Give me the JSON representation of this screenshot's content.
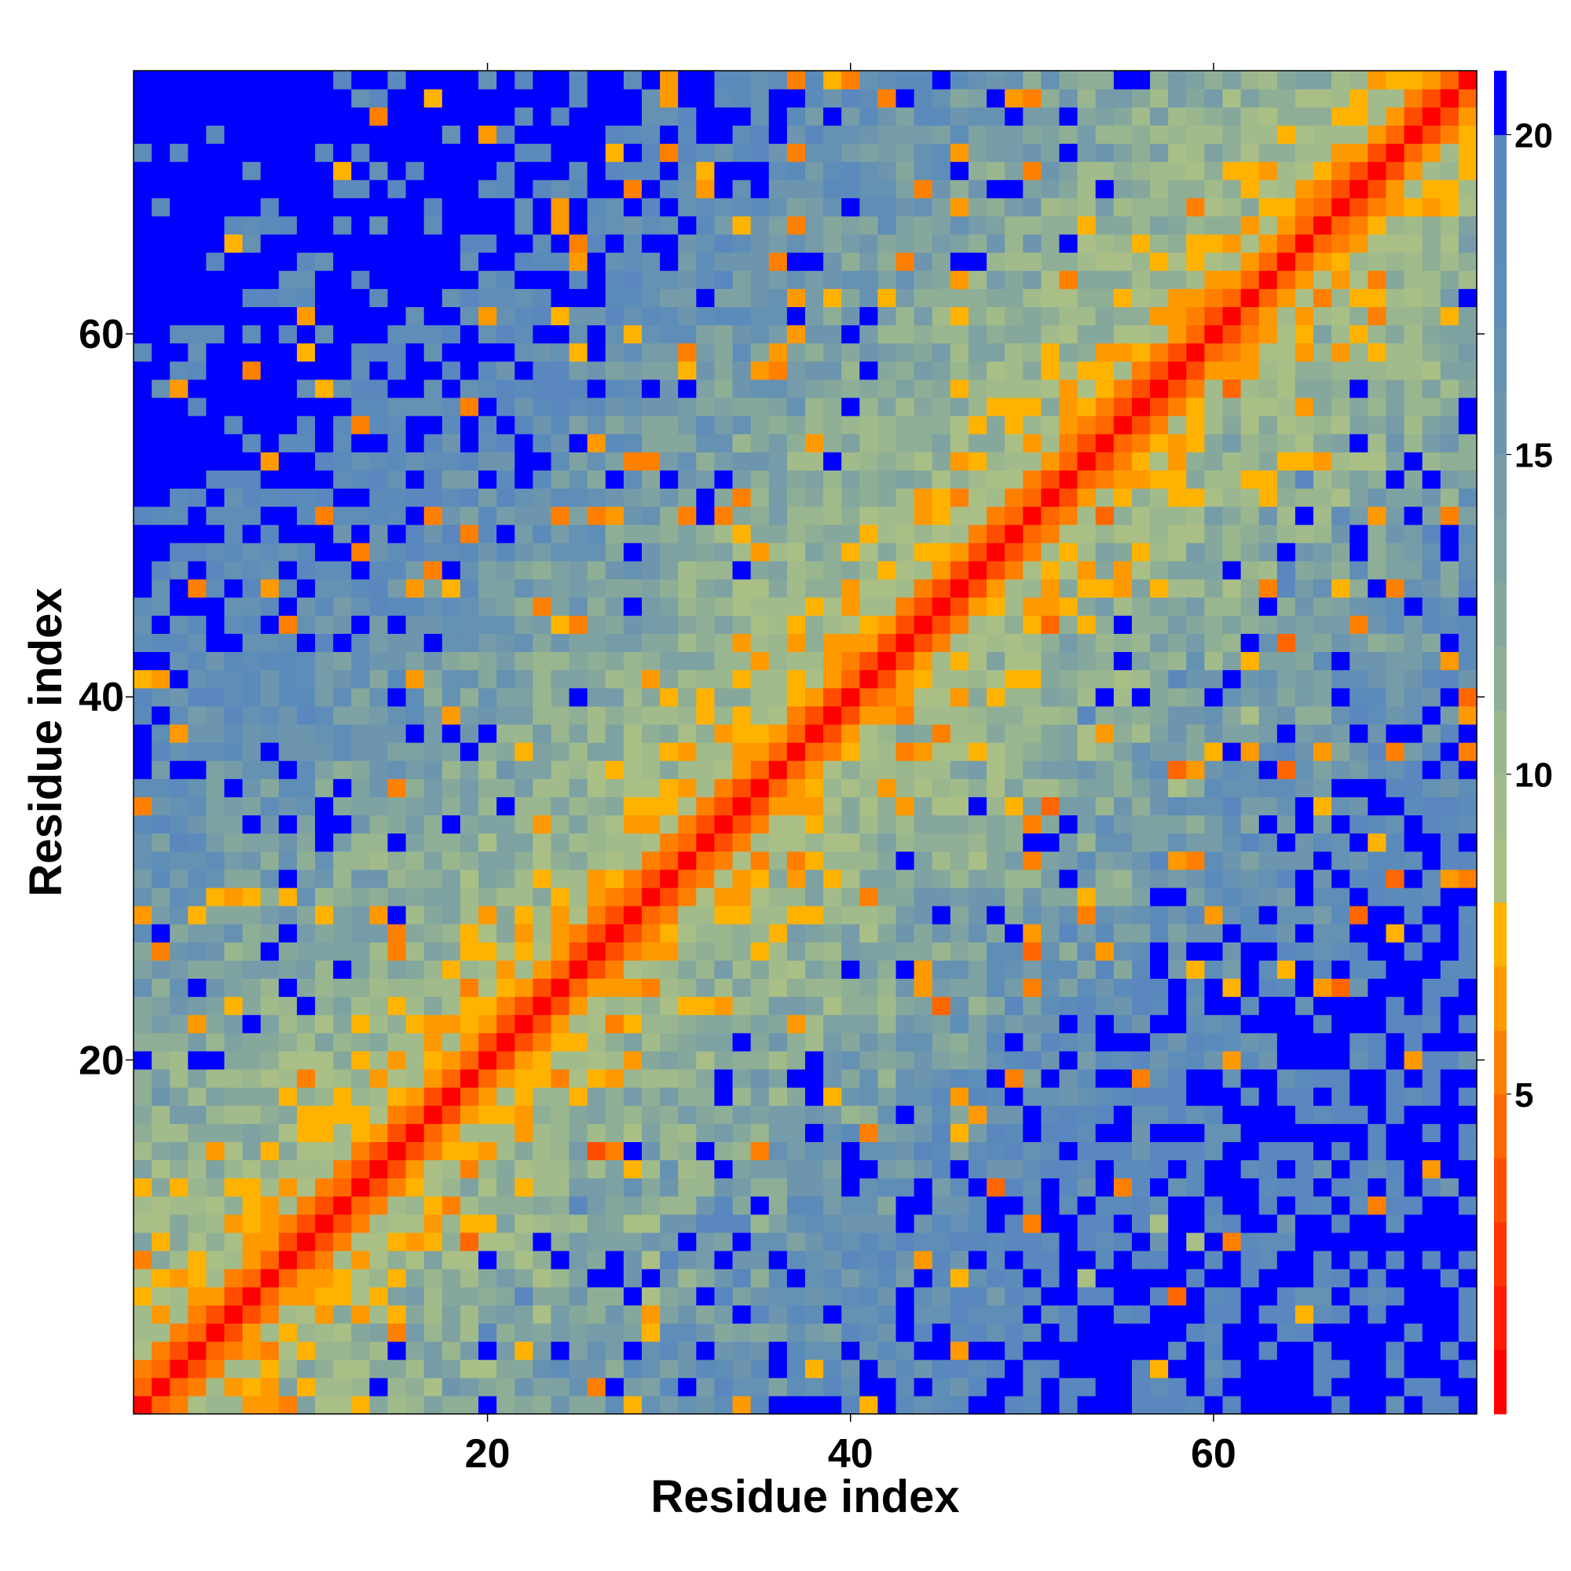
{
  "chart_data": {
    "type": "heatmap",
    "title": "",
    "xlabel": "Residue index",
    "ylabel": "Residue index",
    "n_residues": 74,
    "xlim": [
      1,
      74
    ],
    "ylim": [
      1,
      74
    ],
    "x_ticks": [
      20,
      40,
      60
    ],
    "y_ticks": [
      20,
      40,
      60
    ],
    "x_tick_labels": [
      "20",
      "40",
      "60"
    ],
    "y_tick_labels": [
      "20",
      "40",
      "60"
    ],
    "value_description": "pairwise residue distance (symmetric-style matrix, 0 on diagonal, capped at ~21)",
    "vmin": 0,
    "vmax": 21,
    "colorbar": {
      "ticks": [
        5,
        10,
        15,
        20
      ],
      "tick_labels": [
        "5",
        "10",
        "15",
        "20"
      ],
      "bins": [
        {
          "from": 0,
          "to": 1,
          "color": "#ff0000"
        },
        {
          "from": 1,
          "to": 2,
          "color": "#ff1a00"
        },
        {
          "from": 2,
          "to": 3,
          "color": "#ff3300"
        },
        {
          "from": 3,
          "to": 4,
          "color": "#ff4d00"
        },
        {
          "from": 4,
          "to": 5,
          "color": "#ff6600"
        },
        {
          "from": 5,
          "to": 6,
          "color": "#ff8000"
        },
        {
          "from": 6,
          "to": 7,
          "color": "#ff9900"
        },
        {
          "from": 7,
          "to": 8,
          "color": "#ffb300"
        },
        {
          "from": 8,
          "to": 9,
          "color": "#a9bf86"
        },
        {
          "from": 9,
          "to": 10,
          "color": "#a2bb8a"
        },
        {
          "from": 10,
          "to": 11,
          "color": "#99b68f"
        },
        {
          "from": 11,
          "to": 12,
          "color": "#8fae96"
        },
        {
          "from": 12,
          "to": 13,
          "color": "#86a89c"
        },
        {
          "from": 13,
          "to": 14,
          "color": "#7ea2a2"
        },
        {
          "from": 14,
          "to": 15,
          "color": "#759ca8"
        },
        {
          "from": 15,
          "to": 16,
          "color": "#6d96ae"
        },
        {
          "from": 16,
          "to": 17,
          "color": "#6591b3"
        },
        {
          "from": 17,
          "to": 18,
          "color": "#5e8db8"
        },
        {
          "from": 18,
          "to": 19,
          "color": "#5b8bbb"
        },
        {
          "from": 19,
          "to": 20,
          "color": "#5987be"
        },
        {
          "from": 20,
          "to": 21,
          "color": "#0000ff"
        }
      ]
    },
    "features": {
      "diagonal_band_color": "red",
      "near_diagonal": "orange",
      "far_from_diagonal": "blue regions (values >= 20)",
      "seed": 7
    }
  }
}
